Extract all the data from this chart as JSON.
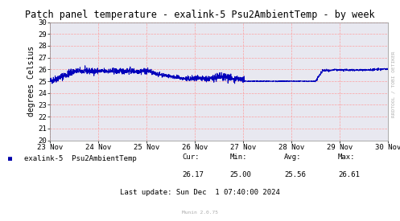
{
  "title": "Patch panel temperature - exalink-5 Psu2AmbientTemp - by week",
  "ylabel": "degrees Celsius",
  "ylim": [
    20,
    30
  ],
  "yticks": [
    20,
    21,
    22,
    23,
    24,
    25,
    26,
    27,
    28,
    29,
    30
  ],
  "x_labels": [
    "23 Nov",
    "24 Nov",
    "25 Nov",
    "26 Nov",
    "27 Nov",
    "28 Nov",
    "29 Nov",
    "30 Nov"
  ],
  "line_color": "#0000bb",
  "grid_color": "#ff9999",
  "bg_color": "#ffffff",
  "plot_bg_color": "#e8e8f0",
  "legend_label": "exalink-5  Psu2AmbientTemp",
  "legend_color": "#0000aa",
  "cur_val": "26.17",
  "min_val": "25.00",
  "avg_val": "25.56",
  "max_val": "26.61",
  "last_update": "Last update: Sun Dec  1 07:40:00 2024",
  "munin_text": "Munin 2.0.75",
  "rrdtool_text": "RRDTOOL / TOBI OETIKER",
  "title_fontsize": 8.5,
  "axis_fontsize": 7,
  "tick_fontsize": 6.5,
  "legend_fontsize": 6.5
}
